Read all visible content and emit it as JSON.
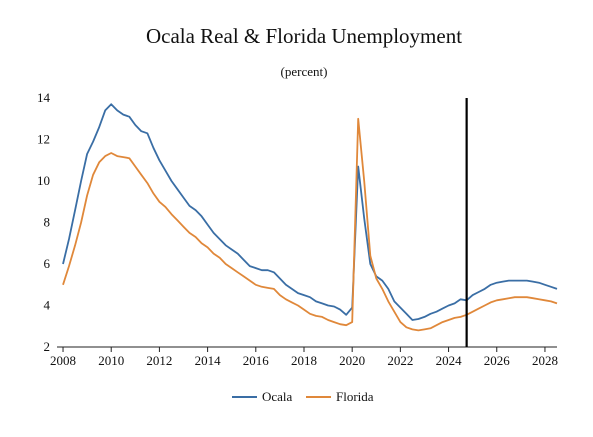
{
  "chart_data": {
    "type": "line",
    "title": "Ocala Real & Florida Unemployment",
    "subtitle": "(percent)",
    "xlabel": "",
    "ylabel": "",
    "xlim": [
      2007.75,
      2028.5
    ],
    "ylim": [
      2,
      14
    ],
    "x_ticks": [
      2008,
      2010,
      2012,
      2014,
      2016,
      2018,
      2020,
      2022,
      2024,
      2026,
      2028
    ],
    "y_ticks": [
      2,
      4,
      6,
      8,
      10,
      12,
      14
    ],
    "grid": false,
    "legend_position": "bottom-center",
    "forecast_marker_x": 2024.75,
    "series": [
      {
        "name": "Ocala",
        "color": "#3a6ea5",
        "points": [
          [
            2008.0,
            6.0
          ],
          [
            2008.25,
            7.2
          ],
          [
            2008.5,
            8.6
          ],
          [
            2008.75,
            10.0
          ],
          [
            2009.0,
            11.3
          ],
          [
            2009.25,
            11.9
          ],
          [
            2009.5,
            12.6
          ],
          [
            2009.75,
            13.4
          ],
          [
            2010.0,
            13.7
          ],
          [
            2010.25,
            13.4
          ],
          [
            2010.5,
            13.2
          ],
          [
            2010.75,
            13.1
          ],
          [
            2011.0,
            12.7
          ],
          [
            2011.25,
            12.4
          ],
          [
            2011.5,
            12.3
          ],
          [
            2011.75,
            11.6
          ],
          [
            2012.0,
            11.0
          ],
          [
            2012.25,
            10.5
          ],
          [
            2012.5,
            10.0
          ],
          [
            2012.75,
            9.6
          ],
          [
            2013.0,
            9.2
          ],
          [
            2013.25,
            8.8
          ],
          [
            2013.5,
            8.6
          ],
          [
            2013.75,
            8.3
          ],
          [
            2014.0,
            7.9
          ],
          [
            2014.25,
            7.5
          ],
          [
            2014.5,
            7.2
          ],
          [
            2014.75,
            6.9
          ],
          [
            2015.0,
            6.7
          ],
          [
            2015.25,
            6.5
          ],
          [
            2015.5,
            6.2
          ],
          [
            2015.75,
            5.9
          ],
          [
            2016.0,
            5.8
          ],
          [
            2016.25,
            5.7
          ],
          [
            2016.5,
            5.7
          ],
          [
            2016.75,
            5.6
          ],
          [
            2017.0,
            5.3
          ],
          [
            2017.25,
            5.0
          ],
          [
            2017.5,
            4.8
          ],
          [
            2017.75,
            4.6
          ],
          [
            2018.0,
            4.5
          ],
          [
            2018.25,
            4.4
          ],
          [
            2018.5,
            4.2
          ],
          [
            2018.75,
            4.1
          ],
          [
            2019.0,
            4.0
          ],
          [
            2019.25,
            3.95
          ],
          [
            2019.5,
            3.8
          ],
          [
            2019.75,
            3.55
          ],
          [
            2020.0,
            3.9
          ],
          [
            2020.25,
            10.7
          ],
          [
            2020.5,
            8.2
          ],
          [
            2020.75,
            6.0
          ],
          [
            2021.0,
            5.4
          ],
          [
            2021.25,
            5.2
          ],
          [
            2021.5,
            4.8
          ],
          [
            2021.75,
            4.2
          ],
          [
            2022.0,
            3.9
          ],
          [
            2022.25,
            3.6
          ],
          [
            2022.5,
            3.3
          ],
          [
            2022.75,
            3.35
          ],
          [
            2023.0,
            3.45
          ],
          [
            2023.25,
            3.6
          ],
          [
            2023.5,
            3.7
          ],
          [
            2023.75,
            3.85
          ],
          [
            2024.0,
            4.0
          ],
          [
            2024.25,
            4.1
          ],
          [
            2024.5,
            4.3
          ],
          [
            2024.75,
            4.25
          ],
          [
            2025.0,
            4.5
          ],
          [
            2025.25,
            4.65
          ],
          [
            2025.5,
            4.8
          ],
          [
            2025.75,
            5.0
          ],
          [
            2026.0,
            5.1
          ],
          [
            2026.25,
            5.15
          ],
          [
            2026.5,
            5.2
          ],
          [
            2026.75,
            5.2
          ],
          [
            2027.0,
            5.2
          ],
          [
            2027.25,
            5.2
          ],
          [
            2027.5,
            5.15
          ],
          [
            2027.75,
            5.1
          ],
          [
            2028.0,
            5.0
          ],
          [
            2028.25,
            4.9
          ],
          [
            2028.5,
            4.8
          ]
        ]
      },
      {
        "name": "Florida",
        "color": "#e0883a",
        "points": [
          [
            2008.0,
            5.0
          ],
          [
            2008.25,
            5.9
          ],
          [
            2008.5,
            6.9
          ],
          [
            2008.75,
            8.0
          ],
          [
            2009.0,
            9.3
          ],
          [
            2009.25,
            10.3
          ],
          [
            2009.5,
            10.9
          ],
          [
            2009.75,
            11.2
          ],
          [
            2010.0,
            11.35
          ],
          [
            2010.25,
            11.2
          ],
          [
            2010.5,
            11.15
          ],
          [
            2010.75,
            11.1
          ],
          [
            2011.0,
            10.7
          ],
          [
            2011.25,
            10.3
          ],
          [
            2011.5,
            9.9
          ],
          [
            2011.75,
            9.4
          ],
          [
            2012.0,
            9.0
          ],
          [
            2012.25,
            8.75
          ],
          [
            2012.5,
            8.4
          ],
          [
            2012.75,
            8.1
          ],
          [
            2013.0,
            7.8
          ],
          [
            2013.25,
            7.5
          ],
          [
            2013.5,
            7.3
          ],
          [
            2013.75,
            7.0
          ],
          [
            2014.0,
            6.8
          ],
          [
            2014.25,
            6.5
          ],
          [
            2014.5,
            6.3
          ],
          [
            2014.75,
            6.0
          ],
          [
            2015.0,
            5.8
          ],
          [
            2015.25,
            5.6
          ],
          [
            2015.5,
            5.4
          ],
          [
            2015.75,
            5.2
          ],
          [
            2016.0,
            5.0
          ],
          [
            2016.25,
            4.9
          ],
          [
            2016.5,
            4.85
          ],
          [
            2016.75,
            4.8
          ],
          [
            2017.0,
            4.5
          ],
          [
            2017.25,
            4.3
          ],
          [
            2017.5,
            4.15
          ],
          [
            2017.75,
            4.0
          ],
          [
            2018.0,
            3.8
          ],
          [
            2018.25,
            3.6
          ],
          [
            2018.5,
            3.5
          ],
          [
            2018.75,
            3.45
          ],
          [
            2019.0,
            3.3
          ],
          [
            2019.25,
            3.2
          ],
          [
            2019.5,
            3.1
          ],
          [
            2019.75,
            3.05
          ],
          [
            2020.0,
            3.2
          ],
          [
            2020.25,
            13.0
          ],
          [
            2020.5,
            10.0
          ],
          [
            2020.75,
            6.4
          ],
          [
            2021.0,
            5.3
          ],
          [
            2021.25,
            4.8
          ],
          [
            2021.5,
            4.2
          ],
          [
            2021.75,
            3.7
          ],
          [
            2022.0,
            3.2
          ],
          [
            2022.25,
            2.95
          ],
          [
            2022.5,
            2.85
          ],
          [
            2022.75,
            2.8
          ],
          [
            2023.0,
            2.85
          ],
          [
            2023.25,
            2.9
          ],
          [
            2023.5,
            3.05
          ],
          [
            2023.75,
            3.2
          ],
          [
            2024.0,
            3.3
          ],
          [
            2024.25,
            3.4
          ],
          [
            2024.5,
            3.45
          ],
          [
            2024.75,
            3.55
          ],
          [
            2025.0,
            3.7
          ],
          [
            2025.25,
            3.85
          ],
          [
            2025.5,
            4.0
          ],
          [
            2025.75,
            4.15
          ],
          [
            2026.0,
            4.25
          ],
          [
            2026.25,
            4.3
          ],
          [
            2026.5,
            4.35
          ],
          [
            2026.75,
            4.4
          ],
          [
            2027.0,
            4.4
          ],
          [
            2027.25,
            4.4
          ],
          [
            2027.5,
            4.35
          ],
          [
            2027.75,
            4.3
          ],
          [
            2028.0,
            4.25
          ],
          [
            2028.25,
            4.2
          ],
          [
            2028.5,
            4.1
          ]
        ]
      }
    ]
  }
}
